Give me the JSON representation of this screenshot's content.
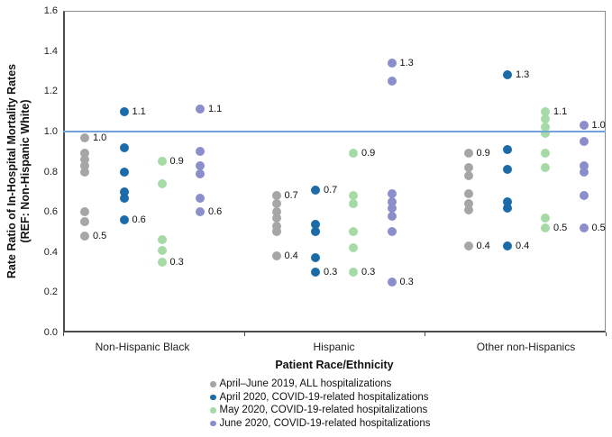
{
  "chart_data": {
    "type": "scatter",
    "title": "",
    "xlabel": "Patient Race/Ethnicity",
    "ylabel_line1": "Rate Ratio of In-Hospital  Mortality  Rates",
    "ylabel_line2": "(REF:  Non-Hispanic  White)",
    "ylim": [
      0.0,
      1.6
    ],
    "ytick_labels": [
      "1.6",
      "1.4",
      "1.2",
      "1.0",
      "0.8",
      "0.6",
      "0.4",
      "0.2",
      "0.0"
    ],
    "grid": false,
    "legend_position": "bottom",
    "reference_line": {
      "value": 1.0,
      "color": "#74A3D8"
    },
    "categories": [
      "Non-Hispanic Black",
      "Hispanic",
      "Other non-Hispanics"
    ],
    "series": [
      {
        "name": "April–June 2019, ALL hospitalizations",
        "color": "#A6A6A6",
        "points": {
          "Non-Hispanic Black": [
            0.97,
            0.89,
            0.86,
            0.83,
            0.8,
            0.6,
            0.55,
            0.48
          ],
          "Hispanic": [
            0.68,
            0.64,
            0.6,
            0.57,
            0.53,
            0.5,
            0.38
          ],
          "Other non-Hispanics": [
            0.89,
            0.82,
            0.78,
            0.69,
            0.64,
            0.61,
            0.43
          ]
        },
        "point_labels": {
          "Non-Hispanic Black": {
            "max": "1.0",
            "min": "0.5"
          },
          "Hispanic": {
            "max": "0.7",
            "min": "0.4"
          },
          "Other non-Hispanics": {
            "max": "0.9",
            "min": "0.4"
          }
        }
      },
      {
        "name": "April 2020, COVID-19-related hospitalizations",
        "color": "#1A6BA8",
        "points": {
          "Non-Hispanic Black": [
            1.1,
            0.92,
            0.8,
            0.7,
            0.67,
            0.56
          ],
          "Hispanic": [
            0.71,
            0.54,
            0.5,
            0.37,
            0.3
          ],
          "Other non-Hispanics": [
            1.28,
            0.91,
            0.81,
            0.65,
            0.62,
            0.43
          ]
        },
        "point_labels": {
          "Non-Hispanic Black": {
            "max": "1.1",
            "min": "0.6"
          },
          "Hispanic": {
            "max": "0.7",
            "min": "0.3"
          },
          "Other non-Hispanics": {
            "max": "1.3",
            "min": "0.4"
          }
        }
      },
      {
        "name": "May 2020, COVID-19-related hospitalizations",
        "color": "#A6DBA7",
        "points": {
          "Non-Hispanic Black": [
            0.85,
            0.74,
            0.46,
            0.41,
            0.35
          ],
          "Hispanic": [
            0.89,
            0.68,
            0.64,
            0.5,
            0.42,
            0.3
          ],
          "Other non-Hispanics": [
            1.1,
            1.06,
            1.02,
            0.99,
            0.89,
            0.82,
            0.57,
            0.52
          ]
        },
        "point_labels": {
          "Non-Hispanic Black": {
            "max": "0.9",
            "min": "0.3"
          },
          "Hispanic": {
            "max": "0.9",
            "min": "0.3"
          },
          "Other non-Hispanics": {
            "max": "1.1",
            "min": "0.5"
          }
        }
      },
      {
        "name": "June 2020, COVID-19-related hospitalizations",
        "color": "#8A8FCB",
        "points": {
          "Non-Hispanic Black": [
            1.11,
            0.9,
            0.83,
            0.79,
            0.67,
            0.6
          ],
          "Hispanic": [
            1.34,
            1.25,
            0.69,
            0.65,
            0.62,
            0.58,
            0.5,
            0.25
          ],
          "Other non-Hispanics": [
            1.03,
            0.95,
            0.83,
            0.8,
            0.68,
            0.52
          ]
        },
        "point_labels": {
          "Non-Hispanic Black": {
            "max": "1.1",
            "min": "0.6"
          },
          "Hispanic": {
            "max": "1.3",
            "min": "0.3"
          },
          "Other non-Hispanics": {
            "max": "1.0",
            "min": "0.5"
          }
        }
      }
    ]
  }
}
